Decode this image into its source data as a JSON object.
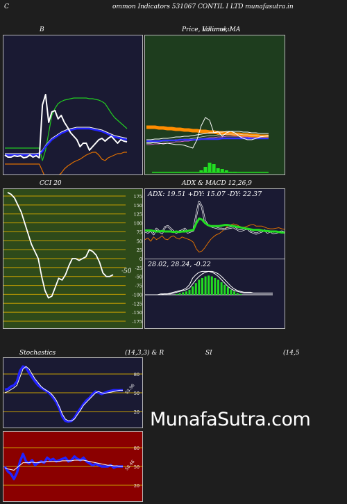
{
  "header": {
    "left_letter": "C",
    "title": "ommon  Indicators 531067 CONTIL I LTD munafasutra.in"
  },
  "watermark": "MunafaSutra.com",
  "colors": {
    "page_bg": "#1e1e1e",
    "navy_bg": "#1a1a33",
    "green_bg": "#1e3d1e",
    "olive_bg": "#2e4a1a",
    "red_bg": "#8b0000"
  },
  "chart_data": [
    {
      "id": "bollinger",
      "type": "line",
      "title": "B",
      "x": [
        1,
        2,
        3,
        4,
        5,
        6,
        7,
        8,
        9,
        10,
        11,
        12,
        13,
        14,
        15,
        16,
        17,
        18,
        19,
        20,
        21,
        22,
        23,
        24,
        25,
        26,
        27,
        28,
        29,
        30,
        31,
        32,
        33,
        34,
        35,
        36,
        37,
        38,
        39,
        40
      ],
      "series": [
        {
          "role": "upper",
          "color": "#22cc22",
          "values": [
            162,
            162,
            162,
            162,
            162,
            162,
            162,
            162,
            162,
            162,
            162,
            162,
            180,
            165,
            140,
            115,
            105,
            98,
            95,
            93,
            92,
            91,
            90,
            90,
            90,
            90,
            90,
            91,
            91,
            92,
            93,
            95,
            98,
            105,
            112,
            118,
            122,
            126,
            130,
            134
          ]
        },
        {
          "role": "middle",
          "color": "#2222ff",
          "values": [
            172,
            172,
            172,
            172,
            172,
            172,
            172,
            172,
            172,
            172,
            172,
            171,
            167,
            160,
            155,
            150,
            147,
            144,
            141,
            139,
            137,
            136,
            135,
            134,
            134,
            134,
            134,
            134,
            135,
            136,
            137,
            138,
            140,
            142,
            144,
            146,
            147,
            148,
            149,
            150
          ]
        },
        {
          "role": "price",
          "color": "#ffffff",
          "values": [
            172,
            175,
            175,
            173,
            174,
            173,
            176,
            175,
            172,
            175,
            173,
            176,
            100,
            85,
            125,
            110,
            108,
            120,
            115,
            125,
            132,
            140,
            145,
            150,
            160,
            155,
            155,
            165,
            160,
            155,
            150,
            148,
            152,
            148,
            145,
            150,
            155,
            150,
            152,
            153
          ]
        },
        {
          "role": "lower",
          "color": "#e07000",
          "values": [
            185,
            185,
            185,
            185,
            185,
            185,
            185,
            185,
            185,
            185,
            185,
            185,
            195,
            205,
            210,
            208,
            205,
            202,
            198,
            192,
            188,
            185,
            182,
            180,
            178,
            175,
            172,
            170,
            168,
            168,
            172,
            178,
            180,
            176,
            174,
            172,
            170,
            170,
            168,
            168
          ]
        }
      ]
    },
    {
      "id": "price-volume-ma",
      "type": "line",
      "title": "Price,  Volume,  MA",
      "overlay_title": "Ichimoku",
      "x": [
        1,
        2,
        3,
        4,
        5,
        6,
        7,
        8,
        9,
        10,
        11,
        12,
        13,
        14,
        15,
        16,
        17,
        18,
        19,
        20,
        21,
        22,
        23,
        24,
        25,
        26,
        27,
        28,
        29,
        30
      ],
      "series": [
        {
          "role": "ma-long",
          "color": "#ff8c00",
          "values": [
            132,
            132,
            132,
            133,
            133,
            134,
            134,
            135,
            135,
            136,
            136,
            137,
            137,
            138,
            138,
            139,
            139,
            140,
            140,
            141,
            141,
            142,
            142,
            143,
            143,
            144,
            144,
            145,
            145,
            145
          ]
        },
        {
          "role": "ma-mid",
          "color": "#ffffff",
          "values": [
            150,
            150,
            149,
            149,
            148,
            148,
            147,
            146,
            146,
            145,
            145,
            144,
            143,
            142,
            141,
            140,
            140,
            139,
            139,
            138,
            138,
            138,
            138,
            139,
            139,
            140,
            140,
            141,
            141,
            141
          ]
        },
        {
          "role": "ma-short",
          "color": "#3333ff",
          "values": [
            152,
            152,
            152,
            152,
            151,
            151,
            151,
            151,
            150,
            150,
            150,
            150,
            150,
            149,
            149,
            149,
            149,
            149,
            148,
            148,
            148,
            148,
            148,
            148,
            148,
            148,
            148,
            148,
            148,
            148
          ]
        },
        {
          "role": "price",
          "color": "#ffffff",
          "values": [
            155,
            155,
            154,
            155,
            156,
            155,
            156,
            157,
            157,
            158,
            160,
            162,
            150,
            130,
            118,
            122,
            140,
            138,
            145,
            140,
            138,
            140,
            145,
            148,
            150,
            150,
            148,
            146,
            145,
            144
          ]
        }
      ],
      "volume": [
        0,
        0,
        0,
        0,
        0,
        0,
        0,
        0,
        0,
        0,
        0,
        0,
        0,
        3,
        8,
        14,
        12,
        6,
        5,
        3,
        1,
        1,
        0,
        0,
        0,
        0,
        0,
        0,
        0,
        0
      ],
      "volume_color": "#22dd22"
    },
    {
      "id": "cci",
      "type": "line",
      "title": "CCI 20",
      "ylim": [
        -175,
        175
      ],
      "yticks": [
        175,
        150,
        125,
        100,
        75,
        50,
        25,
        0,
        -25,
        -50,
        -75,
        -100,
        -125,
        -150,
        -175
      ],
      "current_label": "-50",
      "x": [
        1,
        2,
        3,
        4,
        5,
        6,
        7,
        8,
        9,
        10,
        11,
        12,
        13,
        14,
        15,
        16,
        17,
        18,
        19,
        20,
        21,
        22,
        23,
        24,
        25,
        26,
        27,
        28,
        29,
        30,
        31,
        32
      ],
      "series": [
        {
          "name": "CCI",
          "color": "#ffffff",
          "values": [
            185,
            180,
            170,
            150,
            130,
            100,
            70,
            40,
            20,
            0,
            -50,
            -90,
            -110,
            -105,
            -80,
            -55,
            -60,
            -45,
            -20,
            0,
            0,
            -5,
            0,
            5,
            25,
            20,
            10,
            -10,
            -40,
            -50,
            -50,
            -45
          ]
        }
      ]
    },
    {
      "id": "adx",
      "type": "line",
      "title": "ADX  & MACD 12,26,9",
      "label": "ADX: 19.51  +DY: 15.07  -DY: 22.37",
      "x": [
        1,
        2,
        3,
        4,
        5,
        6,
        7,
        8,
        9,
        10,
        11,
        12,
        13,
        14,
        15,
        16,
        17,
        18,
        19,
        20,
        21,
        22,
        23,
        24,
        25,
        26,
        27,
        28,
        29,
        30,
        31,
        32,
        33,
        34,
        35,
        36,
        37,
        38,
        39,
        40,
        41,
        42,
        43,
        44,
        45,
        46,
        47,
        48,
        49,
        50
      ],
      "series": [
        {
          "role": "adx",
          "color": "#22dd22",
          "values": [
            52,
            52,
            52,
            51,
            50,
            50,
            51,
            50,
            50,
            50,
            49,
            50,
            49,
            50,
            50,
            51,
            52,
            53,
            65,
            74,
            72,
            66,
            62,
            60,
            60,
            60,
            60,
            61,
            62,
            62,
            61,
            60,
            59,
            58,
            57,
            56,
            55,
            54,
            53,
            53,
            53,
            52,
            51,
            51,
            50,
            50,
            50,
            49,
            48,
            48
          ]
        },
        {
          "role": "+dy",
          "color": "#ffffff",
          "values": [
            50,
            48,
            52,
            45,
            55,
            50,
            47,
            58,
            60,
            55,
            50,
            48,
            50,
            52,
            55,
            48,
            50,
            52,
            80,
            105,
            95,
            70,
            62,
            60,
            58,
            57,
            55,
            55,
            54,
            56,
            57,
            58,
            55,
            52,
            52,
            54,
            55,
            50,
            48,
            46,
            48,
            50,
            52,
            48,
            50,
            47,
            48,
            49,
            50,
            48
          ]
        },
        {
          "role": "-dy",
          "color": "#e07000",
          "values": [
            35,
            38,
            32,
            40,
            35,
            38,
            42,
            36,
            35,
            40,
            42,
            38,
            36,
            40,
            38,
            36,
            34,
            30,
            18,
            12,
            14,
            20,
            28,
            35,
            40,
            44,
            46,
            50,
            55,
            60,
            62,
            64,
            63,
            60,
            58,
            58,
            60,
            62,
            63,
            60,
            60,
            60,
            58,
            56,
            55,
            55,
            56,
            57,
            55,
            54
          ]
        }
      ]
    },
    {
      "id": "macd",
      "type": "line",
      "label": "28.02,  28.24,  -0.22",
      "x": [
        1,
        2,
        3,
        4,
        5,
        6,
        7,
        8,
        9,
        10,
        11,
        12,
        13,
        14,
        15,
        16,
        17,
        18,
        19,
        20,
        21,
        22,
        23,
        24,
        25,
        26,
        27,
        28,
        29,
        30,
        31,
        32,
        33,
        34,
        35,
        36,
        37,
        38,
        39,
        40
      ],
      "series": [
        {
          "role": "macd",
          "color": "#ffffff",
          "values": [
            0,
            0,
            0,
            0,
            1,
            1,
            1,
            2,
            3,
            4,
            5,
            6,
            8,
            12,
            20,
            24,
            27,
            28,
            28,
            28,
            27,
            25,
            22,
            18,
            14,
            10,
            7,
            5,
            4,
            3,
            2,
            2,
            2,
            2,
            2,
            2,
            2,
            2,
            2,
            2
          ]
        },
        {
          "role": "signal",
          "color": "#ffffff",
          "values": [
            0,
            0,
            0,
            0,
            0,
            1,
            1,
            1,
            2,
            3,
            4,
            5,
            6,
            8,
            13,
            18,
            22,
            25,
            27,
            28,
            28,
            27,
            25,
            22,
            18,
            14,
            10,
            7,
            5,
            4,
            3,
            3,
            3,
            2,
            2,
            2,
            2,
            2,
            2,
            2
          ]
        },
        {
          "role": "histogram",
          "color": "#22dd22",
          "values": [
            0,
            0,
            0,
            0,
            0,
            0,
            0,
            0,
            0,
            1,
            2,
            3,
            4,
            6,
            10,
            14,
            18,
            20,
            22,
            23,
            22,
            20,
            18,
            15,
            12,
            9,
            6,
            4,
            2,
            1,
            0,
            0,
            0,
            0,
            0,
            0,
            0,
            0,
            0,
            0
          ]
        }
      ]
    },
    {
      "id": "stochastics",
      "type": "line",
      "title": "Stochastics",
      "params": "(14,3,3) & R",
      "ylim": [
        0,
        100
      ],
      "yticks": [
        80,
        50,
        20
      ],
      "current_label": "53.96",
      "x": [
        1,
        2,
        3,
        4,
        5,
        6,
        7,
        8,
        9,
        10,
        11,
        12,
        13,
        14,
        15,
        16,
        17,
        18,
        19,
        20,
        21,
        22,
        23,
        24,
        25,
        26,
        27,
        28,
        29,
        30,
        31,
        32,
        33,
        34,
        35,
        36,
        37,
        38,
        39,
        40
      ],
      "series": [
        {
          "role": "%k",
          "color": "#2222ff",
          "values": [
            55,
            56,
            60,
            62,
            68,
            85,
            92,
            90,
            82,
            75,
            68,
            62,
            58,
            55,
            52,
            48,
            42,
            35,
            25,
            12,
            5,
            4,
            5,
            10,
            18,
            25,
            32,
            38,
            42,
            48,
            52,
            50,
            48,
            50,
            52,
            53,
            54,
            54,
            54,
            54
          ]
        },
        {
          "role": "%d",
          "color": "#ffffff",
          "values": [
            50,
            52,
            55,
            58,
            62,
            75,
            88,
            92,
            88,
            80,
            72,
            66,
            60,
            56,
            53,
            50,
            45,
            38,
            28,
            16,
            8,
            5,
            5,
            8,
            15,
            22,
            30,
            35,
            40,
            45,
            50,
            52,
            50,
            49,
            50,
            51,
            52,
            53,
            54,
            54
          ]
        }
      ]
    },
    {
      "id": "rsi",
      "type": "line",
      "title": "SI",
      "params": "(14,5",
      "ylim": [
        0,
        100
      ],
      "yticks": [
        80,
        50,
        20
      ],
      "current_label": "50.46",
      "x": [
        1,
        2,
        3,
        4,
        5,
        6,
        7,
        8,
        9,
        10,
        11,
        12,
        13,
        14,
        15,
        16,
        17,
        18,
        19,
        20,
        21,
        22,
        23,
        24,
        25,
        26,
        27,
        28,
        29,
        30,
        31,
        32,
        33,
        34,
        35,
        36,
        37,
        38,
        39,
        40
      ],
      "series": [
        {
          "role": "rsi",
          "color": "#2222ff",
          "values": [
            50,
            42,
            38,
            30,
            40,
            58,
            70,
            58,
            55,
            60,
            52,
            56,
            58,
            56,
            64,
            60,
            62,
            58,
            60,
            62,
            64,
            58,
            60,
            66,
            62,
            60,
            64,
            58,
            55,
            52,
            54,
            52,
            50,
            50,
            50,
            52,
            48,
            50,
            50,
            50
          ]
        },
        {
          "role": "rsi-ma",
          "color": "#ffffff",
          "values": [
            48,
            46,
            45,
            44,
            48,
            52,
            56,
            56,
            56,
            57,
            56,
            56,
            57,
            57,
            58,
            58,
            58,
            58,
            58,
            59,
            59,
            59,
            59,
            60,
            60,
            60,
            60,
            59,
            58,
            57,
            56,
            55,
            54,
            53,
            52,
            52,
            51,
            51,
            50,
            50
          ]
        }
      ]
    }
  ]
}
